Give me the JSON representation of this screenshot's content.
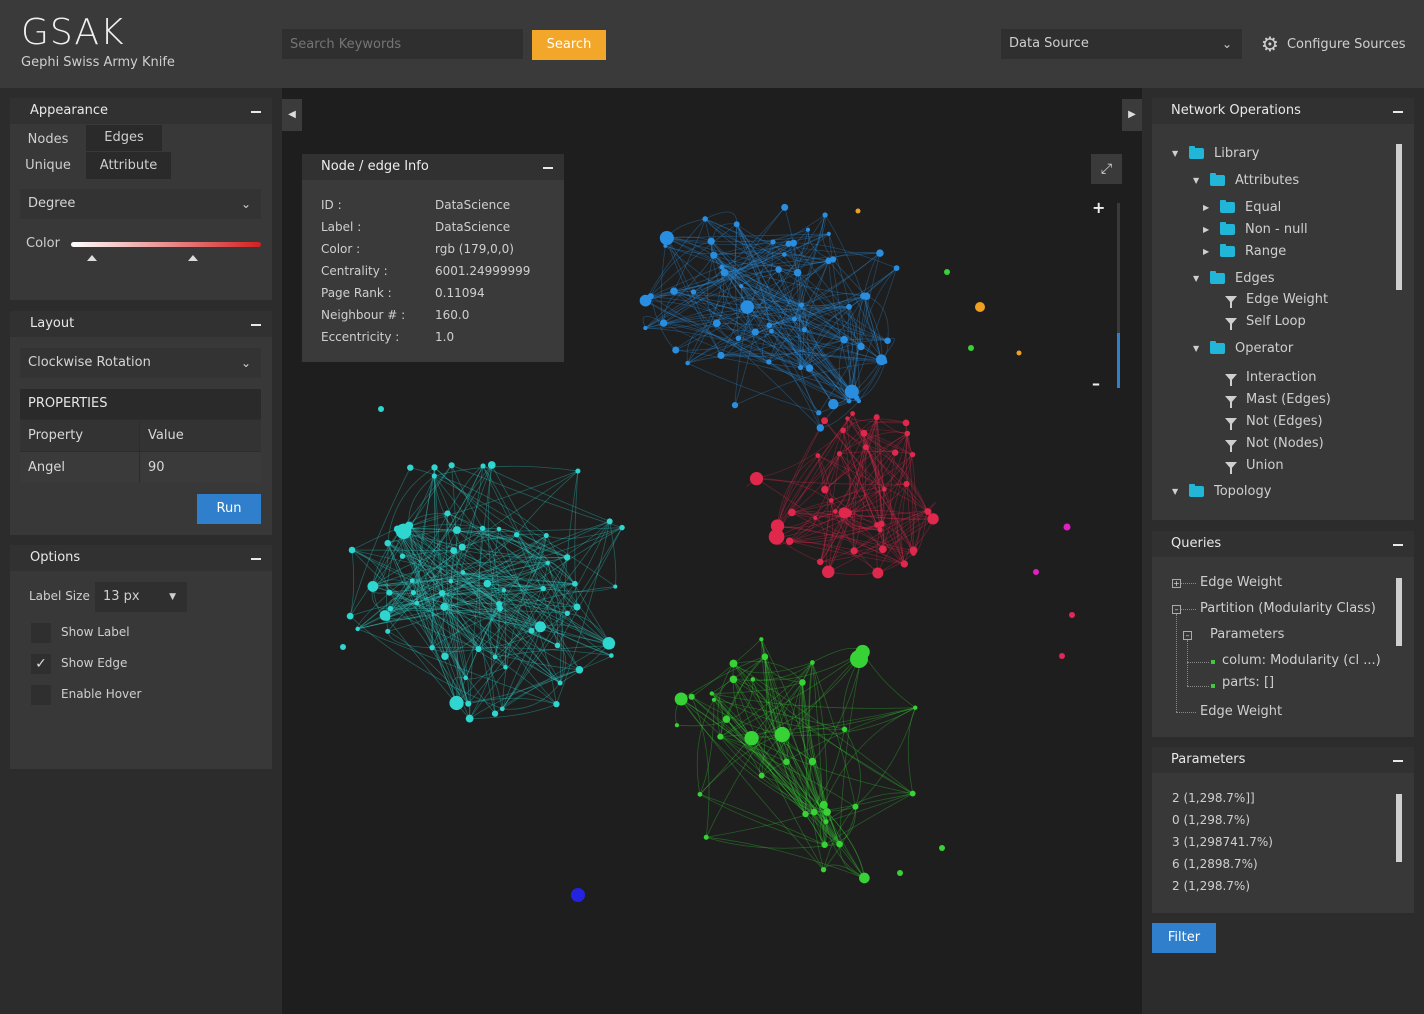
{
  "header": {
    "logo": "GSAK",
    "subtitle": "Gephi Swiss Army Knife",
    "search_placeholder": "Search Keywords",
    "search_button": "Search",
    "data_source": "Data Source",
    "configure": "Configure Sources"
  },
  "appearance": {
    "title": "Appearance",
    "tab_nodes": "Nodes",
    "tab_edges": "Edges",
    "tab_unique": "Unique",
    "tab_attribute": "Attribute",
    "attribute_select": "Degree",
    "color_label": "Color",
    "color_gradient": [
      "#ffffff",
      "#d32020"
    ]
  },
  "layout": {
    "title": "Layout",
    "algorithm": "Clockwise Rotation",
    "properties_title": "PROPERTIES",
    "col_property": "Property",
    "col_value": "Value",
    "rows": [
      {
        "property": "Angel",
        "value": "90"
      }
    ],
    "run_button": "Run"
  },
  "options": {
    "title": "Options",
    "label_size_label": "Label Size",
    "label_size_value": "13 px",
    "show_label": "Show Label",
    "show_label_checked": false,
    "show_edge": "Show Edge",
    "show_edge_checked": true,
    "enable_hover": "Enable Hover",
    "enable_hover_checked": false
  },
  "node_info": {
    "title": "Node / edge Info",
    "rows": [
      {
        "key": "ID :",
        "value": "DataScience"
      },
      {
        "key": "Label :",
        "value": "DataScience"
      },
      {
        "key": "Color :",
        "value": "rgb (179,0,0)"
      },
      {
        "key": "Centrality :",
        "value": "6001.24999999"
      },
      {
        "key": "Page Rank :",
        "value": "0.11094"
      },
      {
        "key": "Neighbour # :",
        "value": "160.0"
      },
      {
        "key": "Eccentricity :",
        "value": "1.0"
      }
    ]
  },
  "zoom": {
    "level": 0.3
  },
  "network_ops": {
    "title": "Network Operations",
    "items": [
      {
        "label": "Library"
      },
      {
        "label": "Attributes"
      },
      {
        "label": "Equal"
      },
      {
        "label": "Non - null"
      },
      {
        "label": "Range"
      },
      {
        "label": "Edges"
      },
      {
        "label": "Edge Weight"
      },
      {
        "label": "Self Loop"
      },
      {
        "label": "Operator"
      },
      {
        "label": "Interaction"
      },
      {
        "label": "Mast (Edges)"
      },
      {
        "label": "Not (Edges)"
      },
      {
        "label": "Not (Nodes)"
      },
      {
        "label": "Union"
      },
      {
        "label": "Topology"
      }
    ]
  },
  "queries": {
    "title": "Queries",
    "items": [
      {
        "label": "Edge Weight"
      },
      {
        "label": "Partition (Modularity Class)"
      },
      {
        "label": "Parameters"
      },
      {
        "label": "colum: Modularity (cl ...)"
      },
      {
        "label": "parts: []"
      },
      {
        "label": "Edge Weight"
      }
    ]
  },
  "parameters": {
    "title": "Parameters",
    "items": [
      "2 (1,298.7%]]",
      "0 (1,298.7%)",
      "3 (1,298741.7%)",
      "6 (1,2898.7%)",
      "2 (1,298.7%)"
    ],
    "filter_button": "Filter"
  }
}
